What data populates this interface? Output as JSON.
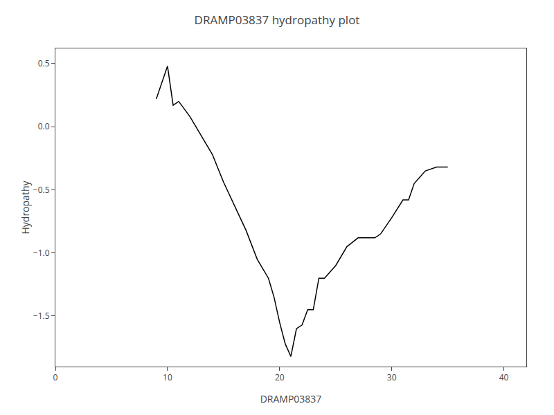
{
  "chart_data": {
    "type": "line",
    "title": "DRAMP03837 hydropathy plot",
    "xlabel": "DRAMP03837",
    "ylabel": "Hydropathy",
    "x": [
      9.0,
      10.0,
      10.5,
      11.0,
      12.0,
      13.0,
      14.0,
      15.0,
      16.0,
      17.0,
      18.0,
      19.0,
      19.5,
      20.0,
      20.5,
      21.0,
      21.5,
      22.0,
      22.5,
      23.0,
      23.5,
      24.0,
      25.0,
      26.0,
      27.0,
      28.0,
      28.5,
      29.0,
      30.0,
      31.0,
      31.5,
      32.0,
      33.0,
      34.0,
      35.0
    ],
    "values": [
      0.22,
      0.48,
      0.17,
      0.2,
      0.08,
      -0.07,
      -0.22,
      -0.44,
      -0.63,
      -0.82,
      -1.05,
      -1.2,
      -1.35,
      -1.55,
      -1.72,
      -1.82,
      -1.6,
      -1.57,
      -1.45,
      -1.45,
      -1.2,
      -1.2,
      -1.1,
      -0.95,
      -0.88,
      -0.88,
      -0.88,
      -0.85,
      -0.72,
      -0.58,
      -0.58,
      -0.45,
      -0.35,
      -0.32,
      -0.32
    ],
    "color": "#000000",
    "xlim": [
      0,
      42
    ],
    "ylim": [
      -1.9,
      0.62
    ],
    "xticks": [
      0,
      10,
      20,
      30,
      40
    ],
    "yticks": [
      0.5,
      {
        "value": 0.0,
        "label": "0.0"
      },
      {
        "value": -0.5,
        "label": "−0.5"
      },
      {
        "value": -1.0,
        "label": "−1.0"
      },
      {
        "value": -1.5,
        "label": "−1.5"
      }
    ],
    "grid": false
  }
}
